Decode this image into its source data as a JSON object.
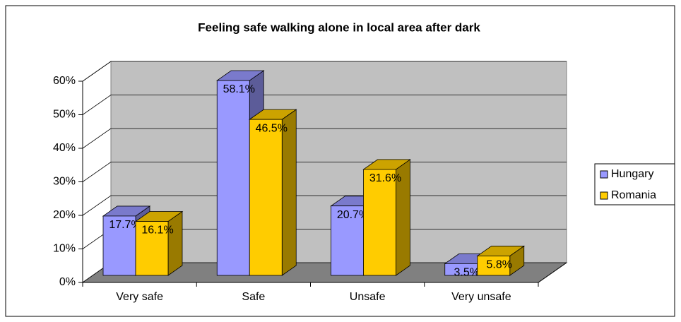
{
  "chart_data": {
    "type": "bar3d",
    "title": "Feeling safe walking alone in local area after dark",
    "categories": [
      "Very safe",
      "Safe",
      "Unsafe",
      "Very unsafe"
    ],
    "series": [
      {
        "name": "Hungary",
        "color": "#9999ff",
        "values": [
          17.7,
          58.1,
          20.7,
          3.5
        ],
        "value_labels": [
          "17.7%",
          "58.1%",
          "20.7%",
          "3.5%"
        ]
      },
      {
        "name": "Romania",
        "color": "#ffcc00",
        "values": [
          16.1,
          46.5,
          31.6,
          5.8
        ],
        "value_labels": [
          "16.1%",
          "46.5%",
          "31.6%",
          "5.8%"
        ]
      }
    ],
    "ylim": [
      0,
      60
    ],
    "yticks": [
      {
        "value": 0,
        "label": "0%"
      },
      {
        "value": 10,
        "label": "10%"
      },
      {
        "value": 20,
        "label": "20%"
      },
      {
        "value": 30,
        "label": "30%"
      },
      {
        "value": 40,
        "label": "40%"
      },
      {
        "value": 50,
        "label": "50%"
      },
      {
        "value": 60,
        "label": "60%"
      }
    ],
    "grid": true,
    "legend": "right"
  }
}
